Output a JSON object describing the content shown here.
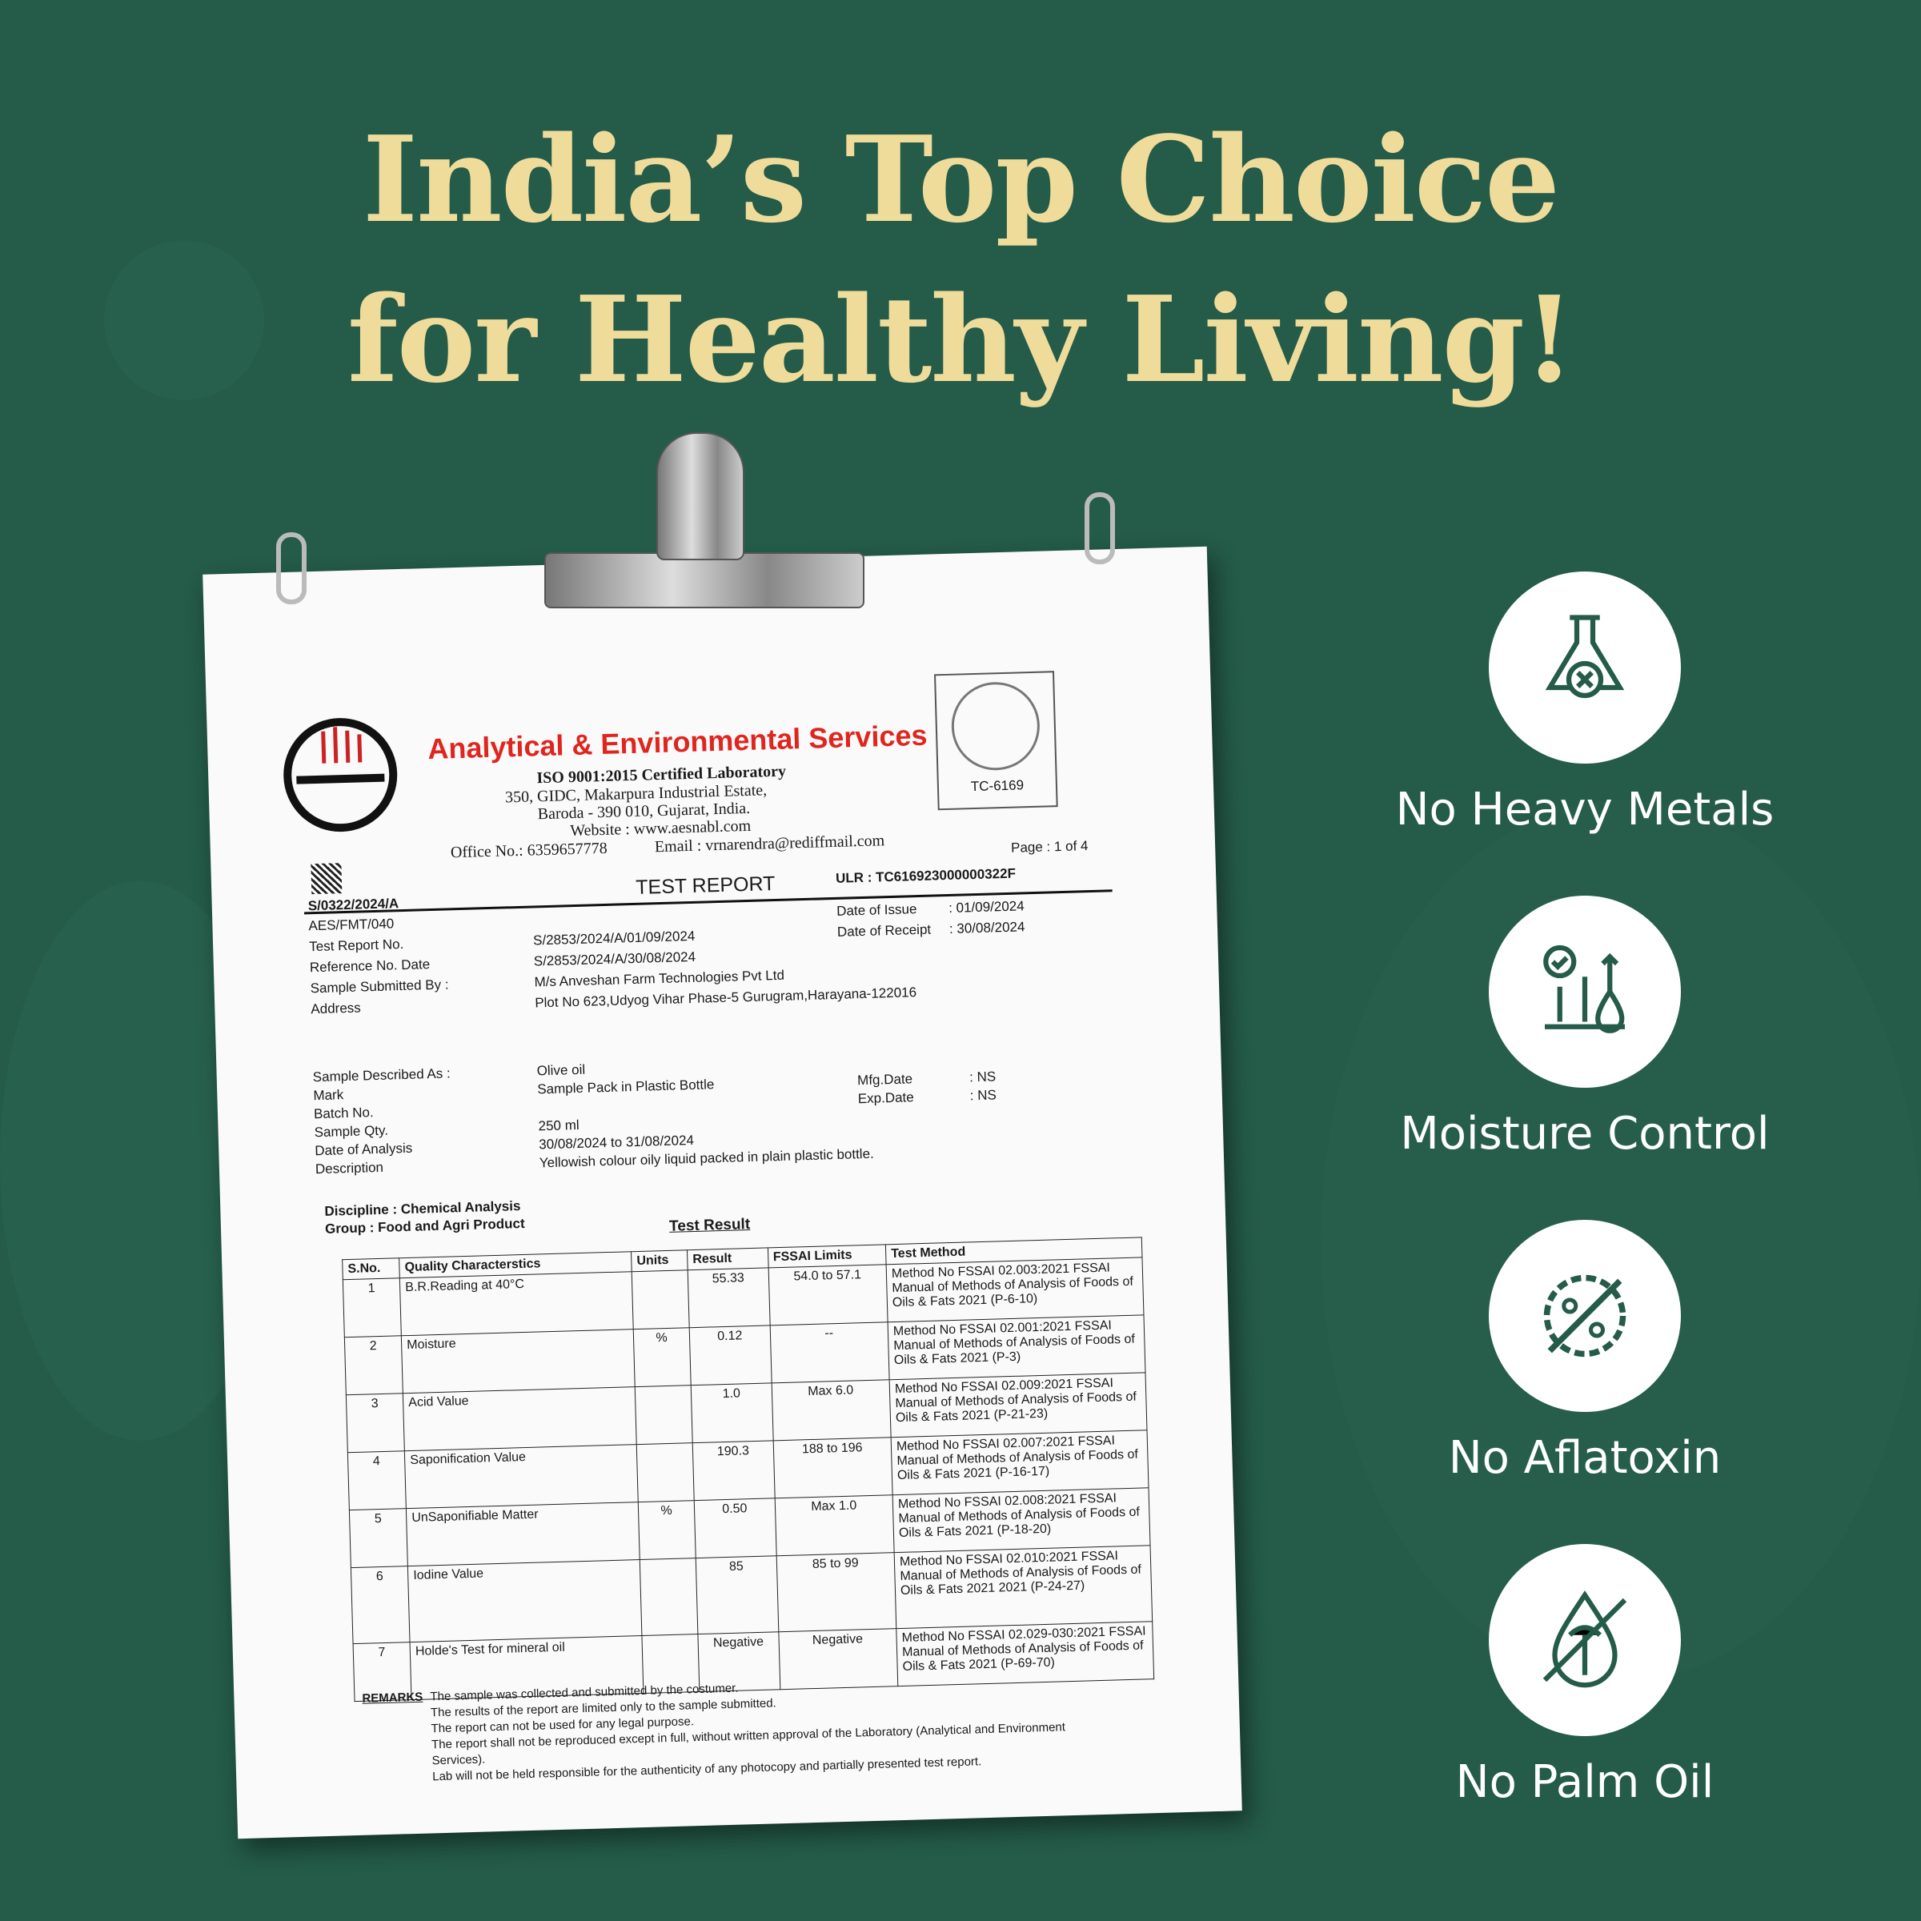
{
  "headline": {
    "line1": "India’s Top Choice",
    "line2": "for Healthy Living!"
  },
  "colors": {
    "background": "#245b49",
    "headline": "#efdc9b",
    "lab_name": "#e0251e",
    "icon": "#245b49"
  },
  "report": {
    "lab_name": "Analytical & Environmental Services",
    "iso": "ISO 9001:2015 Certified Laboratory",
    "address1": "350,  GIDC,  Makarpura  Industrial  Estate,",
    "address2": "Baroda - 390 010,  Gujarat,  India.",
    "website": "Website : www.aesnabl.com",
    "office": "Office No.: 6359657778",
    "email": "Email : vrnarendra@rediffmail.com",
    "stamp_code": "TC-6169",
    "page": "Page : 1 of 4",
    "title": "TEST REPORT",
    "ulr": "ULR : TC616923000000322F",
    "ref_code": "S/0322/2024/A",
    "format": "AES/FMT/040",
    "fields": [
      {
        "label": "Test Report No.",
        "value": "S/2853/2024/A/01/09/2024"
      },
      {
        "label": "Reference No. Date",
        "value": "S/2853/2024/A/30/08/2024"
      },
      {
        "label": "Sample Submitted By :",
        "value": "M/s Anveshan Farm Technologies Pvt Ltd"
      },
      {
        "label": "Address",
        "value": "Plot No 623,Udyog Vihar Phase-5 Gurugram,Harayana-122016"
      }
    ],
    "dates": [
      {
        "label": "Date of Issue",
        "value": ": 01/09/2024"
      },
      {
        "label": "Date of Receipt",
        "value": ": 30/08/2024"
      }
    ],
    "sample": [
      {
        "label": "Sample Described As :",
        "value": "Olive oil"
      },
      {
        "label": "Mark",
        "value": "Sample Pack in Plastic Bottle"
      },
      {
        "label": "Batch No.",
        "value": ""
      },
      {
        "label": "Sample Qty.",
        "value": "250 ml"
      },
      {
        "label": "Date of Analysis",
        "value": "30/08/2024 to 31/08/2024"
      },
      {
        "label": "Description",
        "value": "Yellowish colour oily liquid packed in plain plastic bottle."
      }
    ],
    "mfg": {
      "label": "Mfg.Date",
      "value": ": NS"
    },
    "exp": {
      "label": "Exp.Date",
      "value": ": NS"
    },
    "discipline": "Discipline : Chemical Analysis",
    "group": "Group : Food and Agri Product",
    "table_title": "Test Result",
    "columns": [
      "S.No.",
      "Quality Characterstics",
      "Units",
      "Result",
      "FSSAI Limits",
      "Test Method"
    ],
    "rows": [
      [
        "1",
        "B.R.Reading at 40°C",
        "",
        "55.33",
        "54.0 to 57.1",
        "Method No FSSAI 02.003:2021 FSSAI Manual of Methods of Analysis of Foods of Oils & Fats 2021 (P-6-10)"
      ],
      [
        "2",
        "Moisture",
        "%",
        "0.12",
        "--",
        "Method No FSSAI 02.001:2021 FSSAI Manual of Methods of Analysis of Foods of Oils & Fats 2021 (P-3)"
      ],
      [
        "3",
        "Acid Value",
        "",
        "1.0",
        "Max 6.0",
        "Method No FSSAI 02.009:2021 FSSAI Manual of Methods of Analysis of Foods of Oils & Fats 2021 (P-21-23)"
      ],
      [
        "4",
        "Saponification Value",
        "",
        "190.3",
        "188 to 196",
        "Method No FSSAI 02.007:2021 FSSAI Manual of Methods of Analysis of Foods of Oils & Fats 2021 (P-16-17)"
      ],
      [
        "5",
        "UnSaponifiable Matter",
        "%",
        "0.50",
        "Max 1.0",
        "Method No FSSAI 02.008:2021 FSSAI Manual of Methods of Analysis of Foods of Oils & Fats 2021 (P-18-20)"
      ],
      [
        "6",
        "Iodine Value",
        "",
        "85",
        "85 to 99",
        "Method No FSSAI 02.010:2021 FSSAI Manual of Methods of Analysis of Foods of Oils & Fats 2021 2021 (P-24-27)"
      ],
      [
        "7",
        "Holde's Test for mineral oil",
        "",
        "Negative",
        "Negative",
        "Method No FSSAI 02.029-030:2021 FSSAI Manual of Methods of Analysis of Foods of Oils & Fats 2021 (P-69-70)"
      ]
    ],
    "remarks_label": "REMARKS",
    "remarks": [
      "The sample was collected and submitted by the costumer.",
      "The results of the report are limited only to the sample submitted.",
      "The report can not be used for any legal purpose.",
      "The report shall not be reproduced except in full, without written approval of the Laboratory (Analytical and Environment Services).",
      "Lab will not be held responsible for the authenticity of any photocopy and  partially presented test report."
    ]
  },
  "features": [
    {
      "label": "No Heavy Metals",
      "icon": "flask-x-icon"
    },
    {
      "label": "Moisture Control",
      "icon": "moisture-arrows-icon"
    },
    {
      "label": "No Aflatoxin",
      "icon": "no-aflatoxin-icon"
    },
    {
      "label": "No Palm Oil",
      "icon": "no-palm-oil-icon"
    }
  ]
}
